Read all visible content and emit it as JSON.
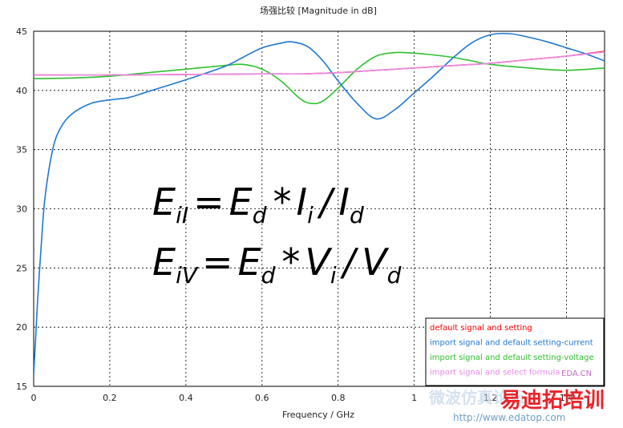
{
  "chart_data": {
    "type": "line",
    "title": "场强比较 [Magnitude in dB]",
    "xlabel": "Frequency / GHz",
    "ylabel": "",
    "xlim": [
      0,
      1.5
    ],
    "ylim": [
      15,
      45
    ],
    "x_ticks": [
      0,
      0.2,
      0.4,
      0.6,
      0.8,
      1,
      1.2,
      1.4
    ],
    "x_tick_labels": [
      "0",
      "0.2",
      "0.4",
      "0.6",
      "0.8",
      "1",
      "1.2",
      "1.4"
    ],
    "y_ticks": [
      15,
      20,
      25,
      30,
      35,
      40,
      45
    ],
    "y_tick_labels": [
      "15",
      "20",
      "25",
      "30",
      "35",
      "40",
      "45"
    ],
    "grid": true,
    "legend_position": "bottom-right",
    "series": [
      {
        "name": "default signal and setting",
        "color": "#ff0000",
        "x": [
          0,
          0.2,
          0.4,
          0.6,
          0.7,
          0.8,
          0.9,
          1.0,
          1.1,
          1.2,
          1.3,
          1.4,
          1.5
        ],
        "y": [
          41.3,
          41.3,
          41.35,
          41.4,
          41.4,
          41.5,
          41.7,
          41.9,
          42.1,
          42.3,
          42.6,
          42.9,
          43.3
        ]
      },
      {
        "name": "import signal and default setting-current",
        "color": "#1f78d1",
        "x": [
          0,
          0.005,
          0.01,
          0.02,
          0.03,
          0.05,
          0.07,
          0.1,
          0.15,
          0.2,
          0.25,
          0.3,
          0.4,
          0.5,
          0.55,
          0.6,
          0.65,
          0.68,
          0.72,
          0.76,
          0.8,
          0.85,
          0.9,
          0.95,
          1.0,
          1.05,
          1.1,
          1.15,
          1.2,
          1.25,
          1.3,
          1.35,
          1.4,
          1.45,
          1.5
        ],
        "y": [
          16.0,
          19.0,
          22.0,
          27.0,
          31.0,
          35.0,
          36.8,
          38.0,
          38.9,
          39.2,
          39.4,
          39.9,
          40.9,
          42.0,
          42.8,
          43.6,
          44.0,
          44.1,
          43.7,
          42.5,
          40.8,
          38.9,
          37.6,
          38.4,
          39.8,
          41.2,
          42.7,
          44.0,
          44.7,
          44.8,
          44.5,
          44.1,
          43.6,
          43.1,
          42.5
        ]
      },
      {
        "name": "import signal and default setting-voltage",
        "color": "#2fbf2f",
        "x": [
          0,
          0.1,
          0.2,
          0.3,
          0.4,
          0.5,
          0.55,
          0.6,
          0.65,
          0.7,
          0.73,
          0.76,
          0.8,
          0.85,
          0.9,
          0.95,
          1.0,
          1.05,
          1.1,
          1.15,
          1.2,
          1.3,
          1.4,
          1.5
        ],
        "y": [
          41.0,
          41.05,
          41.2,
          41.5,
          41.8,
          42.1,
          42.2,
          41.8,
          40.8,
          39.3,
          38.9,
          39.1,
          40.2,
          41.8,
          42.9,
          43.2,
          43.15,
          43.0,
          42.8,
          42.5,
          42.2,
          41.9,
          41.7,
          41.9
        ]
      },
      {
        "name": "import signal and select formula",
        "color": "#e98be9",
        "x": [
          0,
          0.2,
          0.4,
          0.6,
          0.7,
          0.8,
          0.9,
          1.0,
          1.1,
          1.2,
          1.3,
          1.4,
          1.5
        ],
        "y": [
          41.3,
          41.3,
          41.35,
          41.4,
          41.4,
          41.5,
          41.7,
          41.9,
          42.1,
          42.3,
          42.6,
          42.9,
          43.25
        ]
      }
    ]
  },
  "equations": {
    "line1": {
      "E": "E",
      "sub1": "iI",
      "eq": "=",
      "Ed": "E",
      "sub2": "d",
      "op": "*",
      "I": "I",
      "sub3": "i",
      "div": "/",
      "I2": "I",
      "sub4": "d"
    },
    "line2": {
      "E": "E",
      "sub1": "iV",
      "eq": "=",
      "Ed": "E",
      "sub2": "d",
      "op": "*",
      "V": "V",
      "sub3": "i",
      "div": "/",
      "V2": "V",
      "sub4": "d"
    }
  },
  "watermarks": {
    "legend_overlay": "EDA.CN",
    "brand_cn": "易迪拓培训",
    "url": "http://www.edatop.com",
    "faint_cn": "微波仿真论坛"
  },
  "colors": {
    "background": "#ffffff",
    "axis": "#000000",
    "grid": "#000000",
    "brand_red": "#e8232a"
  }
}
